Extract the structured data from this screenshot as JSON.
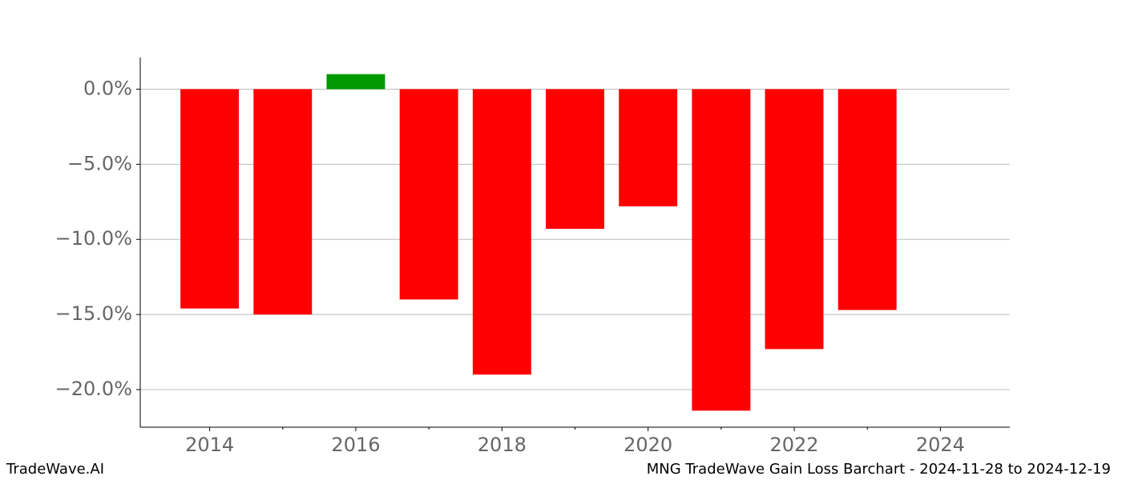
{
  "chart_data": {
    "type": "bar",
    "x": [
      2014,
      2015,
      2016,
      2017,
      2018,
      2019,
      2020,
      2021,
      2022,
      2023
    ],
    "values": [
      -14.6,
      -15.0,
      1.0,
      -14.0,
      -19.0,
      -9.3,
      -7.8,
      -21.4,
      -17.3,
      -14.7
    ],
    "colors": [
      "#ff0000",
      "#ff0000",
      "#009900",
      "#ff0000",
      "#ff0000",
      "#ff0000",
      "#ff0000",
      "#ff0000",
      "#ff0000",
      "#ff0000"
    ],
    "xlim": [
      2013.05,
      2024.95
    ],
    "xticks": [
      2014,
      2016,
      2018,
      2020,
      2022,
      2024
    ],
    "xticks_minor": [
      2015,
      2017,
      2019,
      2021,
      2023
    ],
    "ylim": [
      -22.5,
      2.1
    ],
    "yticks": [
      {
        "value": 0,
        "label": "0.0%"
      },
      {
        "value": -5,
        "label": "−5.0%"
      },
      {
        "value": -10,
        "label": "−10.0%"
      },
      {
        "value": -15,
        "label": "−15.0%"
      },
      {
        "value": -20,
        "label": "−20.0%"
      }
    ],
    "grid": true
  },
  "footer": {
    "left": "TradeWave.AI",
    "right": "MNG TradeWave Gain Loss Barchart - 2024-11-28 to 2024-12-19"
  }
}
